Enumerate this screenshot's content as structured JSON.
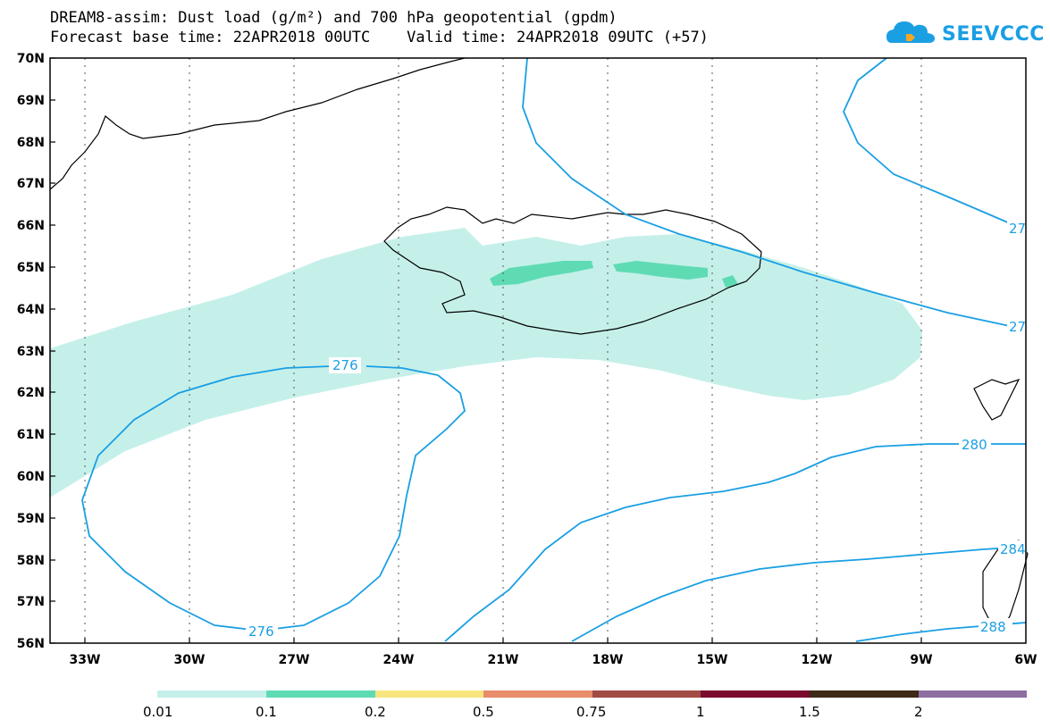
{
  "header": {
    "title_line1": "DREAM8-assim: Dust load (g/m²) and 700 hPa geopotential (gpdm)",
    "title_line2": "Forecast base time: 22APR2018 00UTC    Valid time: 24APR2018 09UTC (+57)"
  },
  "logo": {
    "text": "SEEVCCC",
    "icon": "cloud-icon"
  },
  "map": {
    "lat_labels": [
      "70N",
      "69N",
      "68N",
      "67N",
      "66N",
      "65N",
      "64N",
      "63N",
      "62N",
      "61N",
      "60N",
      "59N",
      "58N",
      "57N",
      "56N"
    ],
    "lon_labels": [
      "33W",
      "30W",
      "27W",
      "24W",
      "21W",
      "18W",
      "15W",
      "12W",
      "9W",
      "6W"
    ],
    "contour_labels": {
      "c276_top": "276",
      "c276_bottom": "276",
      "c280": "280",
      "c27_a": "27",
      "c27_b": "27",
      "c284": "284",
      "c288": "288"
    },
    "colors": {
      "contour": "#1a9fe3",
      "dust_low": "#c5f0ea",
      "dust_mid": "#5fdbb4"
    }
  },
  "legend": {
    "labels": [
      "0.01",
      "0.1",
      "0.2",
      "0.5",
      "0.75",
      "1",
      "1.5",
      "2"
    ],
    "colors": [
      "#c5f0ea",
      "#5fdbb4",
      "#f7e680",
      "#e98c6a",
      "#a24a45",
      "#7a0a2e",
      "#3d2a17",
      "#8e6fa2"
    ]
  }
}
